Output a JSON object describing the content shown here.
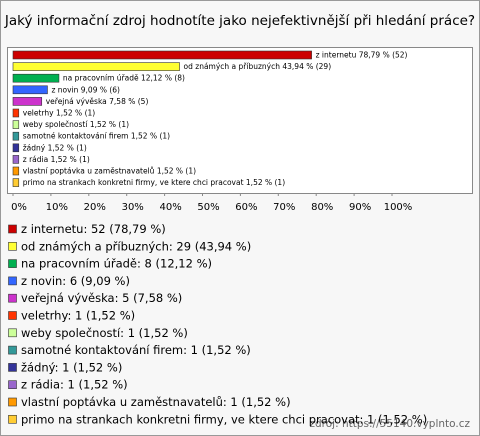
{
  "chart_data": {
    "type": "bar",
    "orientation": "horizontal",
    "title": "Jaký informační zdroj hodnotíte jako nejefektivnější při hledání práce?",
    "values": [
      78.79,
      43.94,
      12.12,
      9.09,
      7.58,
      1.52,
      1.52,
      1.52,
      1.52,
      1.52,
      1.52,
      1.52
    ],
    "value_labels": [
      "z internetu 78,79 % (52)",
      "od známých a příbuzných 43,94 % (29)",
      "na pracovním úřadě 12,12 % (8)",
      "z novin 9,09 % (6)",
      "veřejná vývěska 7,58 % (5)",
      "veletrhy 1,52 % (1)",
      "weby společností 1,52 % (1)",
      "samotné kontaktování firem 1,52 % (1)",
      "žádný 1,52 % (1)",
      "z rádia 1,52 % (1)",
      "vlastní poptávka u zaměstnavatelů 1,52 % (1)",
      "primo na strankach konkretni firmy, ve ktere chci pracovat 1,52 % (1)"
    ],
    "legend_labels": [
      "z internetu: 52 (78,79 %)",
      "od známých a příbuzných: 29 (43,94 %)",
      "na pracovním úřadě: 8 (12,12 %)",
      "z novin: 6 (9,09 %)",
      "veřejná vývěska: 5 (7,58 %)",
      "veletrhy: 1 (1,52 %)",
      "weby společností: 1 (1,52 %)",
      "samotné kontaktování firem: 1 (1,52 %)",
      "žádný: 1 (1,52 %)",
      "z rádia: 1 (1,52 %)",
      "vlastní poptávka u zaměstnavatelů: 1 (1,52 %)",
      "primo na strankach konkretni firmy, ve ktere chci pracovat: 1 (1,52 %)"
    ],
    "colors": [
      "#cc0000",
      "#ffff33",
      "#00b050",
      "#3366ff",
      "#cc33cc",
      "#ff3300",
      "#ccff99",
      "#339999",
      "#333399",
      "#9966cc",
      "#ff9900",
      "#ffcc33"
    ],
    "xlim": [
      0,
      100
    ],
    "xticks": [
      {
        "value": 0,
        "label": "0%"
      },
      {
        "value": 10,
        "label": "10%"
      },
      {
        "value": 20,
        "label": "20%"
      },
      {
        "value": 30,
        "label": "30%"
      },
      {
        "value": 40,
        "label": "40%"
      },
      {
        "value": 50,
        "label": "50%"
      },
      {
        "value": 60,
        "label": "60%"
      },
      {
        "value": 70,
        "label": "70%"
      },
      {
        "value": 80,
        "label": "80%"
      },
      {
        "value": 90,
        "label": "90%"
      },
      {
        "value": 100,
        "label": "100%"
      }
    ],
    "source": "zdroj: https://55140.vyplnto.cz"
  }
}
